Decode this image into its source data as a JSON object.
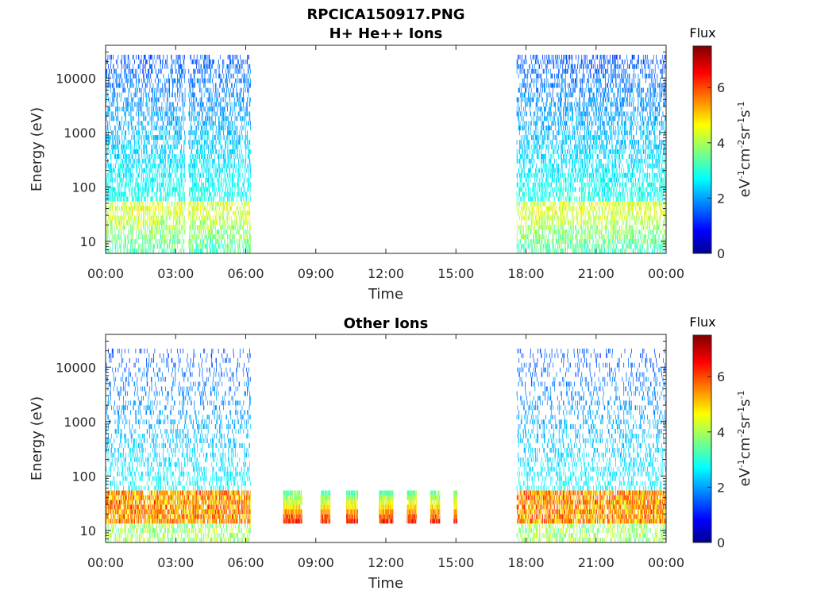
{
  "figure_title": "RPCICA150917.PNG",
  "chart_data": [
    {
      "type": "heatmap",
      "title": "H+ He++ Ions",
      "xlabel": "Time",
      "ylabel": "Energy (eV)",
      "x_ticks": [
        "00:00",
        "03:00",
        "06:00",
        "09:00",
        "12:00",
        "15:00",
        "18:00",
        "21:00",
        "00:00"
      ],
      "x_range_hours": [
        0,
        24
      ],
      "y_scale": "log",
      "y_ticks": [
        "10",
        "100",
        "1000",
        "10000"
      ],
      "y_range": [
        6,
        40000
      ],
      "colorbar": {
        "label": "Flux",
        "unit": "eV-1cm-2sr-1s-1",
        "ticks": [
          "0",
          "2",
          "4",
          "6"
        ],
        "range": [
          0,
          7.5
        ],
        "colormap": "jet"
      },
      "data_intervals": [
        {
          "start_hour": 0.0,
          "end_hour": 3.4,
          "min_energy": 6,
          "max_energy": 25000,
          "peak_energy": 35,
          "peak_flux": 4.5,
          "high_energy_flux": 1.8
        },
        {
          "start_hour": 3.55,
          "end_hour": 6.2,
          "min_energy": 6,
          "max_energy": 25000,
          "peak_energy": 35,
          "peak_flux": 4.5,
          "high_energy_flux": 1.8
        },
        {
          "start_hour": 17.6,
          "end_hour": 24.0,
          "min_energy": 6,
          "max_energy": 25000,
          "peak_energy": 35,
          "peak_flux": 4.5,
          "high_energy_flux": 1.8
        }
      ]
    },
    {
      "type": "heatmap",
      "title": "Other Ions",
      "xlabel": "Time",
      "ylabel": "Energy (eV)",
      "x_ticks": [
        "00:00",
        "03:00",
        "06:00",
        "09:00",
        "12:00",
        "15:00",
        "18:00",
        "21:00",
        "00:00"
      ],
      "x_range_hours": [
        0,
        24
      ],
      "y_scale": "log",
      "y_ticks": [
        "10",
        "100",
        "1000",
        "10000"
      ],
      "y_range": [
        6,
        40000
      ],
      "colorbar": {
        "label": "Flux",
        "unit": "eV-1cm-2sr-1s-1",
        "ticks": [
          "0",
          "2",
          "4",
          "6"
        ],
        "range": [
          0,
          7.5
        ],
        "colormap": "jet"
      },
      "data_intervals": [
        {
          "start_hour": 0.0,
          "end_hour": 6.2,
          "min_energy": 6,
          "max_energy": 20000,
          "band_low": 12,
          "band_high": 45,
          "peak_flux": 6.5
        },
        {
          "start_hour": 17.6,
          "end_hour": 24.0,
          "min_energy": 6,
          "max_energy": 20000,
          "band_low": 12,
          "band_high": 45,
          "peak_flux": 6.5
        }
      ],
      "bursts": [
        {
          "start_hour": 7.6,
          "end_hour": 8.4,
          "energy_low": 13,
          "energy_high": 50,
          "peak_flux": 7.0
        },
        {
          "start_hour": 9.2,
          "end_hour": 9.6,
          "energy_low": 13,
          "energy_high": 50,
          "peak_flux": 7.0
        },
        {
          "start_hour": 10.3,
          "end_hour": 10.8,
          "energy_low": 13,
          "energy_high": 50,
          "peak_flux": 7.0
        },
        {
          "start_hour": 11.7,
          "end_hour": 12.3,
          "energy_low": 13,
          "energy_high": 50,
          "peak_flux": 7.0
        },
        {
          "start_hour": 12.9,
          "end_hour": 13.3,
          "energy_low": 13,
          "energy_high": 50,
          "peak_flux": 7.0
        },
        {
          "start_hour": 13.9,
          "end_hour": 14.3,
          "energy_low": 13,
          "energy_high": 50,
          "peak_flux": 7.0
        },
        {
          "start_hour": 14.9,
          "end_hour": 15.05,
          "energy_low": 13,
          "energy_high": 50,
          "peak_flux": 7.0
        }
      ]
    }
  ]
}
